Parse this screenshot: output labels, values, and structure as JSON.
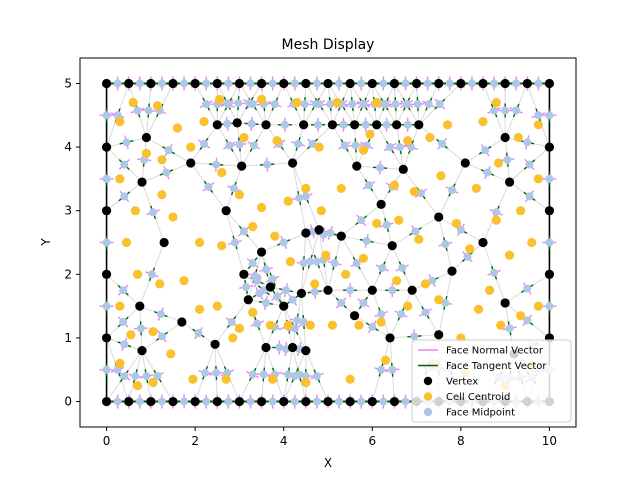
{
  "chart_data": {
    "type": "scatter",
    "title": "Mesh Display",
    "xlabel": "X",
    "ylabel": "Y",
    "xlim": [
      -0.6,
      10.6
    ],
    "ylim": [
      -0.4,
      5.4
    ],
    "xticks": [
      0,
      2,
      4,
      6,
      8,
      10
    ],
    "yticks": [
      0,
      1,
      2,
      3,
      4,
      5
    ],
    "xtick_labels": [
      "0",
      "2",
      "4",
      "6",
      "8",
      "10"
    ],
    "ytick_labels": [
      "0",
      "1",
      "2",
      "3",
      "4",
      "5"
    ],
    "grid": false,
    "legend_position": "bottom-right",
    "colors": {
      "normal": "#ee82ee",
      "tangent": "#006400",
      "vertex": "#000000",
      "centroid": "#fbc02d",
      "midpoint": "#aec7e8",
      "edge": "#dddddd"
    },
    "legend": [
      {
        "label": "Face Normal Vector",
        "kind": "line",
        "color": "#ee82ee"
      },
      {
        "label": "Face Tangent Vector",
        "kind": "line",
        "color": "#006400"
      },
      {
        "label": "Vertex",
        "kind": "marker",
        "color": "#000000"
      },
      {
        "label": "Cell Centroid",
        "kind": "marker",
        "color": "#fbc02d"
      },
      {
        "label": "Face Midpoint",
        "kind": "marker",
        "color": "#aec7e8"
      }
    ],
    "vertices": [
      [
        0,
        0
      ],
      [
        0.5,
        0
      ],
      [
        1,
        0
      ],
      [
        1.5,
        0
      ],
      [
        2,
        0
      ],
      [
        2.5,
        0
      ],
      [
        3,
        0
      ],
      [
        3.5,
        0
      ],
      [
        4,
        0
      ],
      [
        4.5,
        0
      ],
      [
        5,
        0
      ],
      [
        5.5,
        0
      ],
      [
        6,
        0
      ],
      [
        6.5,
        0
      ],
      [
        7,
        0
      ],
      [
        7.5,
        0
      ],
      [
        8,
        0
      ],
      [
        8.5,
        0
      ],
      [
        9,
        0
      ],
      [
        9.5,
        0
      ],
      [
        10,
        0
      ],
      [
        0,
        5
      ],
      [
        0.5,
        5
      ],
      [
        1,
        5
      ],
      [
        1.5,
        5
      ],
      [
        2,
        5
      ],
      [
        2.5,
        5
      ],
      [
        3,
        5
      ],
      [
        3.5,
        5
      ],
      [
        4,
        5
      ],
      [
        4.5,
        5
      ],
      [
        5,
        5
      ],
      [
        5.5,
        5
      ],
      [
        6,
        5
      ],
      [
        6.5,
        5
      ],
      [
        7,
        5
      ],
      [
        7.5,
        5
      ],
      [
        8,
        5
      ],
      [
        8.5,
        5
      ],
      [
        9,
        5
      ],
      [
        9.5,
        5
      ],
      [
        10,
        5
      ],
      [
        0,
        1
      ],
      [
        0,
        2
      ],
      [
        0,
        3
      ],
      [
        0,
        4
      ],
      [
        10,
        1
      ],
      [
        10,
        2
      ],
      [
        10,
        3
      ],
      [
        10,
        4
      ],
      [
        0.8,
        0.8
      ],
      [
        0.75,
        1.5
      ],
      [
        0.9,
        4.15
      ],
      [
        0.8,
        3.45
      ],
      [
        1.3,
        2.5
      ],
      [
        1.7,
        1.25
      ],
      [
        1.9,
        3.75
      ],
      [
        2.45,
        0.9
      ],
      [
        2.5,
        4.35
      ],
      [
        2.7,
        3.0
      ],
      [
        2.95,
        4.38
      ],
      [
        3.05,
        3.7
      ],
      [
        3.1,
        2.0
      ],
      [
        3.2,
        1.6
      ],
      [
        3.5,
        2.35
      ],
      [
        3.6,
        0.85
      ],
      [
        3.6,
        4.35
      ],
      [
        3.7,
        1.8
      ],
      [
        4.0,
        1.5
      ],
      [
        4.2,
        0.85
      ],
      [
        4.2,
        3.75
      ],
      [
        4.4,
        1.7
      ],
      [
        4.45,
        4.35
      ],
      [
        4.5,
        2.65
      ],
      [
        4.5,
        0.8
      ],
      [
        4.8,
        2.7
      ],
      [
        5.0,
        1.75
      ],
      [
        5.1,
        4.35
      ],
      [
        5.3,
        2.6
      ],
      [
        5.6,
        1.35
      ],
      [
        5.6,
        4.35
      ],
      [
        5.65,
        3.7
      ],
      [
        6.0,
        1.75
      ],
      [
        6.1,
        4.35
      ],
      [
        6.2,
        3.1
      ],
      [
        6.4,
        1.0
      ],
      [
        6.45,
        2.45
      ],
      [
        6.55,
        4.35
      ],
      [
        6.7,
        3.65
      ],
      [
        6.9,
        1.75
      ],
      [
        7.05,
        4.35
      ],
      [
        7.5,
        2.9
      ],
      [
        7.5,
        1.05
      ],
      [
        7.8,
        2.05
      ],
      [
        8.1,
        3.75
      ],
      [
        8.5,
        2.5
      ],
      [
        9.0,
        1.55
      ],
      [
        9.1,
        3.45
      ],
      [
        9.0,
        4.15
      ],
      [
        9.2,
        0.75
      ]
    ],
    "centroids": [
      [
        0.3,
        1.5
      ],
      [
        0.3,
        3.5
      ],
      [
        0.3,
        4.4
      ],
      [
        0.3,
        0.6
      ],
      [
        0.45,
        2.5
      ],
      [
        0.6,
        4.7
      ],
      [
        0.7,
        0.25
      ],
      [
        0.55,
        1.05
      ],
      [
        0.65,
        3.0
      ],
      [
        0.7,
        2.0
      ],
      [
        0.9,
        3.9
      ],
      [
        1.05,
        0.3
      ],
      [
        1.05,
        1.1
      ],
      [
        1.15,
        4.65
      ],
      [
        1.25,
        3.8
      ],
      [
        1.25,
        3.25
      ],
      [
        1.2,
        1.85
      ],
      [
        1.45,
        0.75
      ],
      [
        1.6,
        4.3
      ],
      [
        1.5,
        2.9
      ],
      [
        1.75,
        1.9
      ],
      [
        1.9,
        4.0
      ],
      [
        1.95,
        0.35
      ],
      [
        2.1,
        2.5
      ],
      [
        2.1,
        1.45
      ],
      [
        2.2,
        4.4
      ],
      [
        2.55,
        4.75
      ],
      [
        2.6,
        3.6
      ],
      [
        2.5,
        1.5
      ],
      [
        2.6,
        2.45
      ],
      [
        2.7,
        0.35
      ],
      [
        2.85,
        1.0
      ],
      [
        3.0,
        1.15
      ],
      [
        3.0,
        3.25
      ],
      [
        3.1,
        4.15
      ],
      [
        3.3,
        2.75
      ],
      [
        3.3,
        1.4
      ],
      [
        3.5,
        4.75
      ],
      [
        3.5,
        3.05
      ],
      [
        3.7,
        1.2
      ],
      [
        3.75,
        0.35
      ],
      [
        3.8,
        2.6
      ],
      [
        3.85,
        4.1
      ],
      [
        4.1,
        1.2
      ],
      [
        4.1,
        3.15
      ],
      [
        4.15,
        2.2
      ],
      [
        4.3,
        4.7
      ],
      [
        4.5,
        3.35
      ],
      [
        4.5,
        0.3
      ],
      [
        4.6,
        1.2
      ],
      [
        4.7,
        1.85
      ],
      [
        4.8,
        4.0
      ],
      [
        4.85,
        3.0
      ],
      [
        4.95,
        2.3
      ],
      [
        5.1,
        1.2
      ],
      [
        5.2,
        4.7
      ],
      [
        5.3,
        3.35
      ],
      [
        5.4,
        2.0
      ],
      [
        5.5,
        0.35
      ],
      [
        5.7,
        1.2
      ],
      [
        5.8,
        3.95
      ],
      [
        5.8,
        2.25
      ],
      [
        5.95,
        4.2
      ],
      [
        6.1,
        4.7
      ],
      [
        6.1,
        2.8
      ],
      [
        6.2,
        1.25
      ],
      [
        6.3,
        0.65
      ],
      [
        6.5,
        3.4
      ],
      [
        6.55,
        1.9
      ],
      [
        6.6,
        2.85
      ],
      [
        6.8,
        4.1
      ],
      [
        6.8,
        1.5
      ],
      [
        6.95,
        3.3
      ],
      [
        7.05,
        2.55
      ],
      [
        7.3,
        4.15
      ],
      [
        7.2,
        1.85
      ],
      [
        7.4,
        0.6
      ],
      [
        7.5,
        1.6
      ],
      [
        7.7,
        4.35
      ],
      [
        7.55,
        3.55
      ],
      [
        7.9,
        2.8
      ],
      [
        8.0,
        1.0
      ],
      [
        8.2,
        2.4
      ],
      [
        8.1,
        0.45
      ],
      [
        8.35,
        3.35
      ],
      [
        8.4,
        1.45
      ],
      [
        8.5,
        4.4
      ],
      [
        8.65,
        1.75
      ],
      [
        8.8,
        2.85
      ],
      [
        8.8,
        4.7
      ],
      [
        8.85,
        3.75
      ],
      [
        8.9,
        1.2
      ],
      [
        9.0,
        0.25
      ],
      [
        9.1,
        2.3
      ],
      [
        9.35,
        3.0
      ],
      [
        9.35,
        1.35
      ],
      [
        9.3,
        4.15
      ],
      [
        9.55,
        0.55
      ],
      [
        9.6,
        2.5
      ],
      [
        9.75,
        4.35
      ],
      [
        9.75,
        3.5
      ],
      [
        9.75,
        1.5
      ]
    ]
  }
}
